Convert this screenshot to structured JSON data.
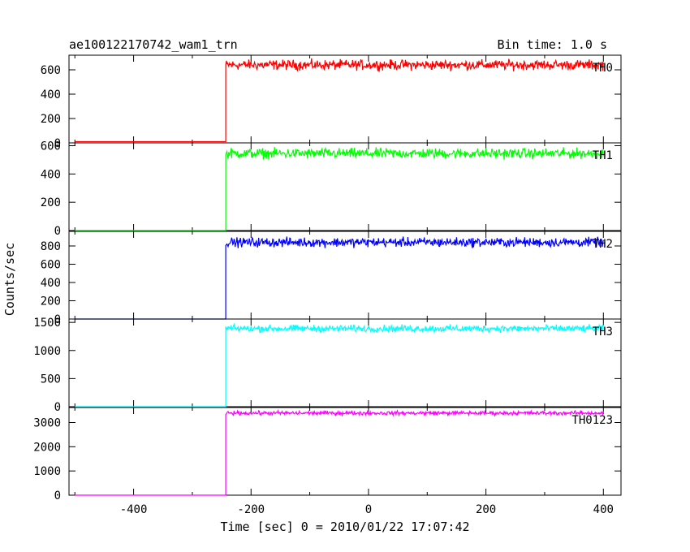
{
  "chart_data": {
    "type": "line",
    "title": "ae100122170742_wam1_trn",
    "subtitle": "Bin time: 1.0 s",
    "xlabel": "Time [sec] 0 = 2010/01/22 17:07:42",
    "ylabel": "Counts/sec",
    "xlim": [
      -510,
      430
    ],
    "x_ticks": [
      -400,
      -200,
      0,
      200,
      400
    ],
    "grid": false,
    "x_range": [
      -500,
      400
    ],
    "onset_time": -243,
    "panels": [
      {
        "name": "TH0",
        "color": "#ff0000",
        "ylim": [
          0,
          720
        ],
        "y_ticks": [
          0,
          200,
          400,
          600
        ],
        "baseline": 10,
        "level": 640,
        "noise": 40
      },
      {
        "name": "TH1",
        "color": "#00ff00",
        "ylim": [
          0,
          620
        ],
        "y_ticks": [
          0,
          200,
          400,
          600
        ],
        "baseline": 0,
        "level": 545,
        "noise": 35
      },
      {
        "name": "TH2",
        "color": "#0000ff",
        "ylim": [
          0,
          960
        ],
        "y_ticks": [
          0,
          200,
          400,
          600,
          800
        ],
        "baseline": 0,
        "level": 840,
        "noise": 50
      },
      {
        "name": "TH3",
        "color": "#00ffff",
        "ylim": [
          0,
          1560
        ],
        "y_ticks": [
          0,
          500,
          1000,
          1500
        ],
        "baseline": 0,
        "level": 1390,
        "noise": 60
      },
      {
        "name": "TH0123",
        "color": "#ff00ff",
        "ylim": [
          0,
          3620
        ],
        "y_ticks": [
          0,
          1000,
          2000,
          3000
        ],
        "baseline": 0,
        "level": 3390,
        "noise": 80
      }
    ]
  }
}
